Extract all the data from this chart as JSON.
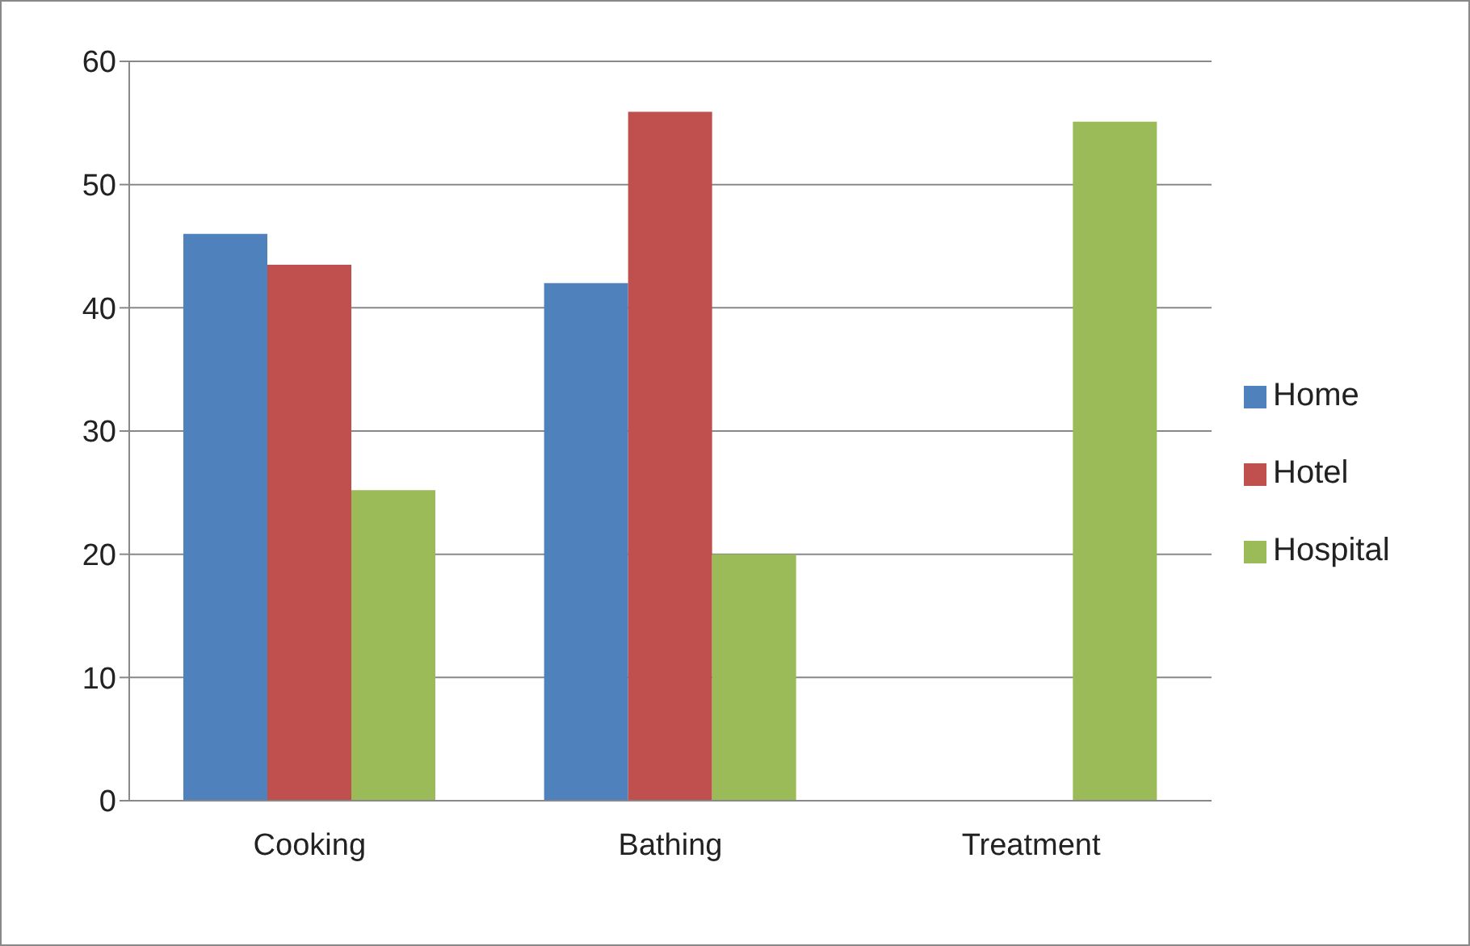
{
  "chart_data": {
    "type": "bar",
    "categories": [
      "Cooking",
      "Bathing",
      "Treatment"
    ],
    "series": [
      {
        "name": "Home",
        "color": "#4f81bd",
        "values": [
          46,
          42,
          null
        ]
      },
      {
        "name": "Hotel",
        "color": "#c0504d",
        "values": [
          43.5,
          55.9,
          null
        ]
      },
      {
        "name": "Hospital",
        "color": "#9bbb59",
        "values": [
          25.2,
          20,
          55.1
        ]
      }
    ],
    "ylim": [
      0,
      60
    ],
    "yticks": [
      0,
      10,
      20,
      30,
      40,
      50,
      60
    ],
    "grid": "y",
    "legend": "right"
  }
}
